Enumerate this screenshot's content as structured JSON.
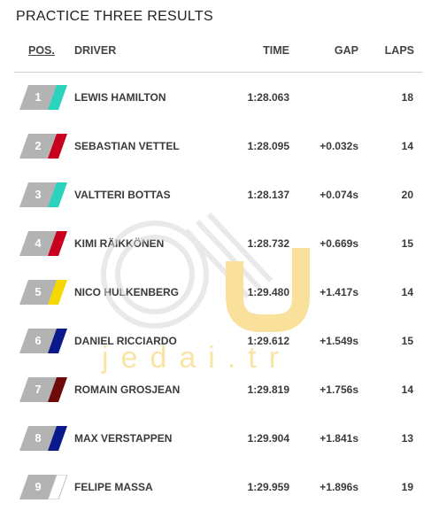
{
  "title": "PRACTICE THREE RESULTS",
  "columns": {
    "pos": "POS.",
    "driver": "DRIVER",
    "time": "TIME",
    "gap": "GAP",
    "laps": "LAPS"
  },
  "rows": [
    {
      "pos": "1",
      "driver": "LEWIS HAMILTON",
      "time": "1:28.063",
      "gap": "",
      "laps": "18",
      "team_color": "#2BD2BE"
    },
    {
      "pos": "2",
      "driver": "SEBASTIAN VETTEL",
      "time": "1:28.095",
      "gap": "+0.032s",
      "laps": "14",
      "team_color": "#C8001E"
    },
    {
      "pos": "3",
      "driver": "VALTTERI BOTTAS",
      "time": "1:28.137",
      "gap": "+0.074s",
      "laps": "20",
      "team_color": "#2BD2BE"
    },
    {
      "pos": "4",
      "driver": "KIMI RÄIKKÖNEN",
      "time": "1:28.732",
      "gap": "+0.669s",
      "laps": "15",
      "team_color": "#C8001E"
    },
    {
      "pos": "5",
      "driver": "NICO HULKENBERG",
      "time": "1:29.480",
      "gap": "+1.417s",
      "laps": "14",
      "team_color": "#F5D800"
    },
    {
      "pos": "6",
      "driver": "DANIEL RICCIARDO",
      "time": "1:29.612",
      "gap": "+1.549s",
      "laps": "15",
      "team_color": "#0A1A8C"
    },
    {
      "pos": "7",
      "driver": "ROMAIN GROSJEAN",
      "time": "1:29.819",
      "gap": "+1.756s",
      "laps": "14",
      "team_color": "#6E0A0A"
    },
    {
      "pos": "8",
      "driver": "MAX VERSTAPPEN",
      "time": "1:29.904",
      "gap": "+1.841s",
      "laps": "13",
      "team_color": "#0A1A8C"
    },
    {
      "pos": "9",
      "driver": "FELIPE MASSA",
      "time": "1:29.959",
      "gap": "+1.896s",
      "laps": "19",
      "team_color": "#FFFFFF"
    }
  ],
  "watermark": {
    "text": "jedai.tr",
    "colors": {
      "accent": "#F6C94A",
      "line": "#D8D8D8"
    }
  }
}
